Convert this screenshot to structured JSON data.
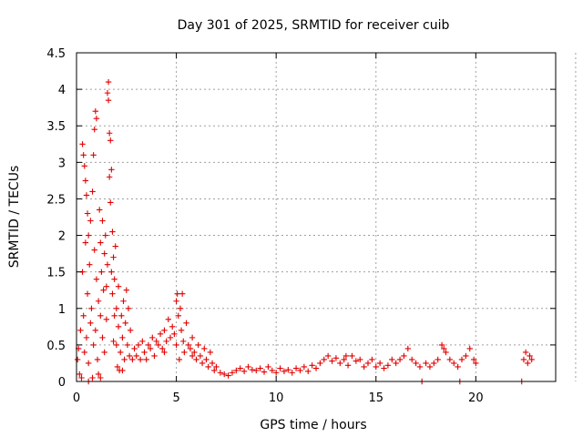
{
  "chart_data": {
    "type": "scatter",
    "title": "Day 301 of 2025, SRMTID for receiver cuib",
    "xlabel": "GPS time / hours",
    "ylabel": "SRMTID / TECUs",
    "xlim": [
      0,
      24
    ],
    "ylim": [
      0,
      4.5
    ],
    "x_ticks": [
      0,
      5,
      10,
      15,
      20
    ],
    "y_ticks": [
      0,
      0.5,
      1,
      1.5,
      2,
      2.5,
      3,
      3.5,
      4,
      4.5
    ],
    "x_tick_labels": [
      "0",
      "5",
      "10",
      "15",
      "20"
    ],
    "y_tick_labels": [
      "0",
      "0.5",
      "1",
      "1.5",
      "2",
      "2.5",
      "3",
      "3.5",
      "4",
      "4.5"
    ],
    "grid": true,
    "marker": "plus",
    "color": "#e00000",
    "series": [
      {
        "name": "SRMTID",
        "points": [
          [
            0.05,
            0.3
          ],
          [
            0.1,
            0.45
          ],
          [
            0.15,
            0.1
          ],
          [
            0.2,
            0.7
          ],
          [
            0.25,
            0.05
          ],
          [
            0.3,
            1.5
          ],
          [
            0.3,
            3.25
          ],
          [
            0.35,
            3.1
          ],
          [
            0.35,
            0.9
          ],
          [
            0.4,
            2.95
          ],
          [
            0.4,
            0.4
          ],
          [
            0.45,
            2.75
          ],
          [
            0.45,
            1.9
          ],
          [
            0.5,
            2.55
          ],
          [
            0.5,
            0.6
          ],
          [
            0.55,
            2.3
          ],
          [
            0.55,
            1.2
          ],
          [
            0.6,
            2.0
          ],
          [
            0.6,
            0.25
          ],
          [
            0.65,
            1.6
          ],
          [
            0.7,
            0.8
          ],
          [
            0.7,
            2.2
          ],
          [
            0.75,
            1.0
          ],
          [
            0.8,
            0.05
          ],
          [
            0.8,
            2.6
          ],
          [
            0.85,
            3.1
          ],
          [
            0.85,
            0.5
          ],
          [
            0.9,
            3.45
          ],
          [
            0.9,
            1.8
          ],
          [
            0.95,
            3.7
          ],
          [
            0.95,
            0.7
          ],
          [
            1.0,
            3.6
          ],
          [
            1.0,
            1.4
          ],
          [
            1.05,
            0.3
          ],
          [
            1.1,
            0.1
          ],
          [
            1.1,
            1.1
          ],
          [
            1.15,
            2.35
          ],
          [
            1.2,
            0.9
          ],
          [
            1.2,
            1.9
          ],
          [
            1.25,
            1.5
          ],
          [
            1.3,
            0.6
          ],
          [
            1.3,
            2.2
          ],
          [
            1.35,
            1.25
          ],
          [
            1.4,
            1.75
          ],
          [
            1.4,
            0.4
          ],
          [
            1.45,
            2.0
          ],
          [
            1.5,
            1.3
          ],
          [
            1.5,
            0.85
          ],
          [
            1.55,
            3.95
          ],
          [
            1.55,
            1.6
          ],
          [
            1.6,
            4.1
          ],
          [
            1.6,
            3.85
          ],
          [
            1.65,
            3.4
          ],
          [
            1.65,
            2.8
          ],
          [
            1.7,
            3.3
          ],
          [
            1.7,
            2.45
          ],
          [
            1.75,
            1.5
          ],
          [
            1.75,
            2.9
          ],
          [
            1.8,
            2.05
          ],
          [
            1.8,
            1.2
          ],
          [
            1.85,
            1.7
          ],
          [
            1.85,
            0.55
          ],
          [
            1.9,
            1.4
          ],
          [
            1.9,
            0.9
          ],
          [
            1.95,
            1.85
          ],
          [
            2.0,
            1.0
          ],
          [
            2.0,
            0.5
          ],
          [
            2.05,
            0.2
          ],
          [
            2.1,
            0.75
          ],
          [
            2.1,
            1.3
          ],
          [
            2.15,
            0.15
          ],
          [
            2.2,
            0.4
          ],
          [
            2.25,
            0.9
          ],
          [
            2.3,
            0.6
          ],
          [
            2.35,
            1.1
          ],
          [
            2.4,
            0.3
          ],
          [
            2.45,
            0.8
          ],
          [
            2.5,
            1.25
          ],
          [
            2.55,
            0.5
          ],
          [
            2.6,
            1.0
          ],
          [
            2.65,
            0.35
          ],
          [
            2.7,
            0.7
          ],
          [
            2.8,
            0.3
          ],
          [
            2.9,
            0.45
          ],
          [
            3.0,
            0.35
          ],
          [
            3.1,
            0.5
          ],
          [
            3.2,
            0.3
          ],
          [
            3.3,
            0.55
          ],
          [
            3.4,
            0.4
          ],
          [
            3.5,
            0.3
          ],
          [
            3.6,
            0.5
          ],
          [
            3.7,
            0.45
          ],
          [
            3.8,
            0.6
          ],
          [
            3.9,
            0.35
          ],
          [
            4.0,
            0.55
          ],
          [
            4.1,
            0.5
          ],
          [
            4.2,
            0.65
          ],
          [
            4.3,
            0.45
          ],
          [
            4.4,
            0.7
          ],
          [
            4.5,
            0.55
          ],
          [
            4.6,
            0.85
          ],
          [
            4.7,
            0.6
          ],
          [
            4.8,
            0.75
          ],
          [
            4.9,
            0.65
          ],
          [
            5.0,
            1.1
          ],
          [
            5.0,
            0.5
          ],
          [
            5.05,
            1.2
          ],
          [
            5.1,
            0.9
          ],
          [
            5.15,
            0.3
          ],
          [
            5.2,
            1.0
          ],
          [
            5.25,
            0.7
          ],
          [
            5.3,
            1.2
          ],
          [
            5.35,
            0.55
          ],
          [
            5.4,
            0.4
          ],
          [
            5.5,
            0.8
          ],
          [
            5.6,
            0.5
          ],
          [
            5.7,
            0.45
          ],
          [
            5.8,
            0.6
          ],
          [
            5.9,
            0.4
          ],
          [
            6.0,
            0.3
          ],
          [
            6.1,
            0.5
          ],
          [
            6.2,
            0.35
          ],
          [
            6.3,
            0.25
          ],
          [
            6.4,
            0.45
          ],
          [
            6.5,
            0.3
          ],
          [
            6.6,
            0.2
          ],
          [
            6.7,
            0.4
          ],
          [
            6.8,
            0.25
          ],
          [
            6.9,
            0.15
          ],
          [
            7.0,
            0.2
          ],
          [
            7.2,
            0.12
          ],
          [
            7.4,
            0.1
          ],
          [
            7.6,
            0.08
          ],
          [
            7.8,
            0.12
          ],
          [
            8.0,
            0.15
          ],
          [
            8.2,
            0.18
          ],
          [
            8.4,
            0.14
          ],
          [
            8.6,
            0.2
          ],
          [
            8.8,
            0.16
          ],
          [
            9.0,
            0.15
          ],
          [
            9.2,
            0.18
          ],
          [
            9.4,
            0.13
          ],
          [
            9.6,
            0.2
          ],
          [
            9.8,
            0.15
          ],
          [
            10.0,
            0.12
          ],
          [
            10.2,
            0.18
          ],
          [
            10.4,
            0.14
          ],
          [
            10.6,
            0.16
          ],
          [
            10.8,
            0.12
          ],
          [
            11.0,
            0.18
          ],
          [
            11.2,
            0.15
          ],
          [
            11.4,
            0.2
          ],
          [
            11.6,
            0.14
          ],
          [
            11.8,
            0.22
          ],
          [
            12.0,
            0.18
          ],
          [
            12.2,
            0.25
          ],
          [
            12.4,
            0.3
          ],
          [
            12.6,
            0.35
          ],
          [
            12.8,
            0.28
          ],
          [
            13.0,
            0.32
          ],
          [
            13.2,
            0.25
          ],
          [
            13.4,
            0.3
          ],
          [
            13.6,
            0.22
          ],
          [
            13.8,
            0.35
          ],
          [
            14.0,
            0.28
          ],
          [
            14.2,
            0.3
          ],
          [
            14.4,
            0.2
          ],
          [
            14.6,
            0.25
          ],
          [
            14.8,
            0.3
          ],
          [
            15.0,
            0.2
          ],
          [
            15.2,
            0.25
          ],
          [
            15.4,
            0.18
          ],
          [
            15.6,
            0.22
          ],
          [
            15.8,
            0.3
          ],
          [
            16.0,
            0.25
          ],
          [
            16.2,
            0.3
          ],
          [
            16.4,
            0.35
          ],
          [
            16.6,
            0.45
          ],
          [
            16.8,
            0.3
          ],
          [
            17.0,
            0.25
          ],
          [
            17.2,
            0.2
          ],
          [
            17.3,
            0.0
          ],
          [
            17.5,
            0.25
          ],
          [
            17.7,
            0.2
          ],
          [
            17.9,
            0.25
          ],
          [
            18.1,
            0.3
          ],
          [
            18.3,
            0.5
          ],
          [
            18.5,
            0.4
          ],
          [
            18.7,
            0.3
          ],
          [
            18.9,
            0.25
          ],
          [
            19.1,
            0.2
          ],
          [
            19.2,
            0.0
          ],
          [
            19.3,
            0.3
          ],
          [
            19.5,
            0.35
          ],
          [
            19.7,
            0.45
          ],
          [
            19.9,
            0.3
          ],
          [
            20.0,
            0.25
          ],
          [
            22.3,
            0.0
          ],
          [
            22.4,
            0.3
          ],
          [
            22.5,
            0.4
          ],
          [
            22.6,
            0.25
          ],
          [
            22.7,
            0.35
          ],
          [
            22.8,
            0.3
          ],
          [
            0.6,
            0.0
          ],
          [
            1.2,
            0.05
          ],
          [
            2.3,
            0.15
          ],
          [
            4.4,
            0.4
          ],
          [
            5.8,
            0.35
          ],
          [
            13.5,
            0.35
          ],
          [
            18.4,
            0.45
          ]
        ]
      }
    ]
  }
}
